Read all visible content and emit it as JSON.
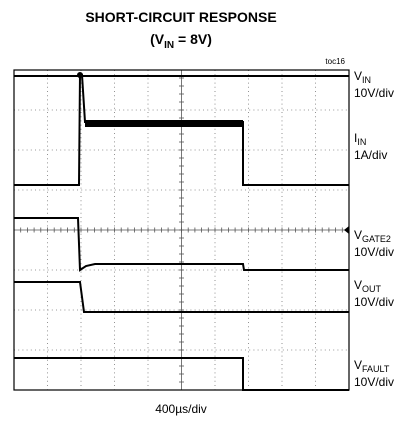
{
  "header": {
    "title": "SHORT-CIRCUIT RESPONSE",
    "subtitle": {
      "pre": "(V",
      "sub": "IN",
      "post": " = 8V)"
    },
    "figure_id": "toc16"
  },
  "traces": [
    {
      "symbol": "V",
      "sub": "IN",
      "scale": "10V/div"
    },
    {
      "symbol": "I",
      "sub": "IN",
      "scale": "1A/div"
    },
    {
      "symbol": "V",
      "sub": "GATE2",
      "scale": "10V/div"
    },
    {
      "symbol": "V",
      "sub": "OUT",
      "scale": "10V/div"
    },
    {
      "symbol": "V",
      "sub": "FAULT",
      "scale": "10V/div"
    }
  ],
  "timebase": "400µs/div"
}
